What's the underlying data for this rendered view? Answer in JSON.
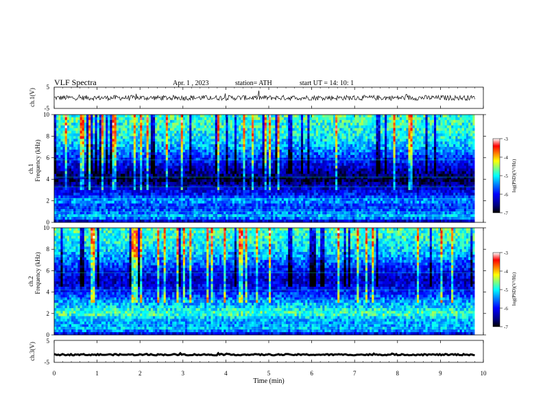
{
  "header": {
    "title": "VLF  Spectra",
    "date": "Apr. 1  , 2023",
    "station": "station= ATH",
    "start": "start  UT  =   14: 10: 1"
  },
  "colors": {
    "colormap": [
      "#000000",
      "#00007f",
      "#0000ff",
      "#007fff",
      "#00ffff",
      "#7fff7f",
      "#ffff00",
      "#ff7f00",
      "#ff0000",
      "#ffffff"
    ],
    "trace": "#000000",
    "frame": "#000000"
  },
  "chart_data": [
    {
      "type": "line",
      "name": "ch1-waveform",
      "ylabel": "ch.1(V)",
      "ylim": [
        -5,
        5
      ],
      "yticks": [
        "5",
        "-5"
      ],
      "x_range_min": [
        0,
        9.8
      ],
      "baseline_v": 0.0,
      "noise_amplitude_v": 1.2
    },
    {
      "type": "heatmap",
      "name": "ch1-spectrogram",
      "ylabel": "ch.1\nFrequency  (kHz)",
      "ylabel_lines": [
        "ch.1",
        "Frequency  (kHz)"
      ],
      "ylim": [
        0,
        10
      ],
      "yticks": [
        "0",
        "2",
        "4",
        "6",
        "8",
        "10"
      ],
      "x_range_min": [
        0,
        9.8
      ],
      "colorbar": {
        "label": "log(PSD)(V²/Hz)",
        "range": [
          -7,
          -3
        ],
        "ticks": [
          "-3",
          "-4",
          "-5",
          "-6",
          "-7"
        ]
      },
      "profile_by_freq_khz": [
        {
          "f": 0.0,
          "v": -6.5
        },
        {
          "f": 0.5,
          "v": -5.2
        },
        {
          "f": 1.0,
          "v": -5.6
        },
        {
          "f": 1.5,
          "v": -5.9
        },
        {
          "f": 2.0,
          "v": -5.3
        },
        {
          "f": 2.5,
          "v": -5.9
        },
        {
          "f": 3.0,
          "v": -6.2
        },
        {
          "f": 3.5,
          "v": -6.5
        },
        {
          "f": 4.0,
          "v": -6.8
        },
        {
          "f": 5.0,
          "v": -6.3
        },
        {
          "f": 6.0,
          "v": -5.8
        },
        {
          "f": 7.0,
          "v": -5.3
        },
        {
          "f": 8.0,
          "v": -5.0
        },
        {
          "f": 9.0,
          "v": -4.9
        },
        {
          "f": 10.0,
          "v": -4.8
        }
      ]
    },
    {
      "type": "heatmap",
      "name": "ch2-spectrogram",
      "ylabel": "ch.2\nFrequency  (kHz)",
      "ylabel_lines": [
        "ch.2",
        "Frequency  (kHz)"
      ],
      "ylim": [
        0,
        10
      ],
      "yticks": [
        "0",
        "2",
        "4",
        "6",
        "8",
        "10"
      ],
      "x_range_min": [
        0,
        9.8
      ],
      "colorbar": {
        "label": "log(PSD)(V²/Hz)",
        "range": [
          -7,
          -3
        ],
        "ticks": [
          "-3",
          "-4",
          "-5",
          "-6",
          "-7"
        ]
      },
      "profile_by_freq_khz": [
        {
          "f": 0.0,
          "v": -6.4
        },
        {
          "f": 0.5,
          "v": -5.2
        },
        {
          "f": 1.0,
          "v": -5.4
        },
        {
          "f": 1.5,
          "v": -5.3
        },
        {
          "f": 2.0,
          "v": -4.7
        },
        {
          "f": 2.5,
          "v": -5.1
        },
        {
          "f": 3.0,
          "v": -5.3
        },
        {
          "f": 3.5,
          "v": -5.6
        },
        {
          "f": 4.0,
          "v": -5.9
        },
        {
          "f": 5.0,
          "v": -6.3
        },
        {
          "f": 6.0,
          "v": -6.0
        },
        {
          "f": 7.0,
          "v": -5.5
        },
        {
          "f": 8.0,
          "v": -5.1
        },
        {
          "f": 9.0,
          "v": -4.9
        },
        {
          "f": 10.0,
          "v": -4.8
        }
      ]
    },
    {
      "type": "line",
      "name": "ch3-waveform",
      "ylabel": "ch.3(V)",
      "ylim": [
        -5,
        5
      ],
      "yticks": [
        "5",
        "-5"
      ],
      "x_range_min": [
        0,
        9.8
      ],
      "baseline_v": -1.5,
      "noise_amplitude_v": 0.3
    }
  ],
  "x_axis": {
    "label": "Time  (min)",
    "range": [
      0,
      10
    ],
    "ticks": [
      "0",
      "1",
      "2",
      "3",
      "4",
      "5",
      "6",
      "7",
      "8",
      "9",
      "10"
    ]
  }
}
